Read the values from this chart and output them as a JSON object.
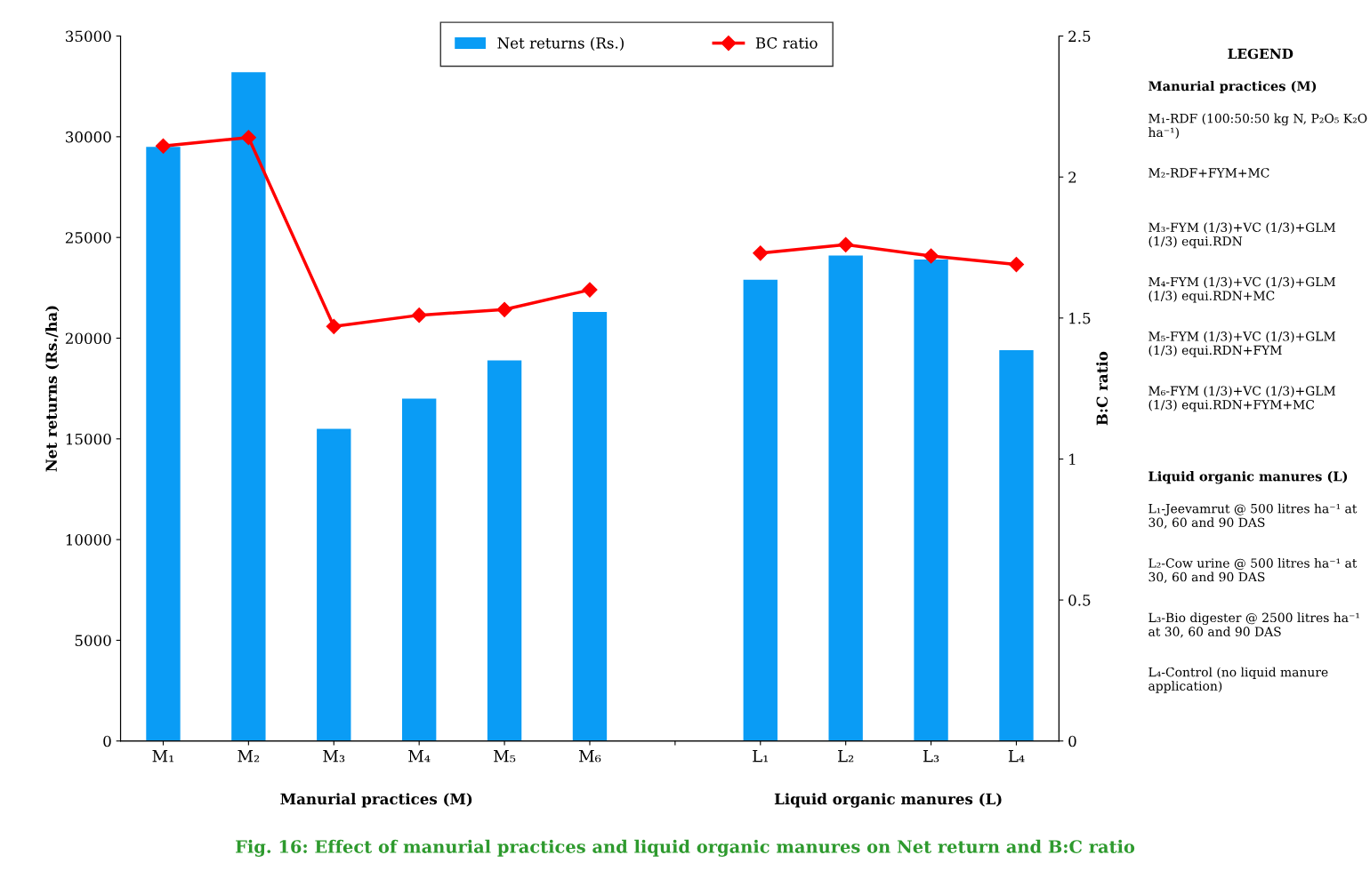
{
  "chart_data": {
    "type": "bar",
    "title": "Fig. 16: Effect of manurial practices and liquid organic manures on Net return and B:C ratio",
    "ylabel": "Net returns (Rs./ha)",
    "y2label": "B:C ratio",
    "categories": [
      "M₁",
      "M₂",
      "M₃",
      "M₄",
      "M₅",
      "M₆",
      null,
      "L₁",
      "L₂",
      "L₃",
      "L₄"
    ],
    "series": [
      {
        "name": "Net returns (Rs.)",
        "color": "#0a9cf5",
        "values": [
          29500,
          33200,
          15500,
          17000,
          18900,
          21300,
          null,
          22900,
          24100,
          23900,
          19400
        ]
      },
      {
        "name": "BC ratio",
        "type": "line",
        "axis": "y2",
        "color": "#ff0000",
        "marker": "diamond",
        "values": [
          2.11,
          2.14,
          1.47,
          1.51,
          1.53,
          1.6,
          null,
          1.73,
          1.76,
          1.72,
          1.69
        ]
      }
    ],
    "ylim": [
      0,
      35000
    ],
    "yticks": [
      0,
      5000,
      10000,
      15000,
      20000,
      25000,
      30000,
      35000
    ],
    "y2lim": [
      0,
      2.5
    ],
    "y2ticks": [
      0,
      0.5,
      1,
      1.5,
      2,
      2.5
    ],
    "legend": "top",
    "grid": false,
    "annotations": [
      "Manurial practices (M)",
      "Liquid organic manures (L)",
      "LEGEND",
      "Manurial practices (M)",
      "M₁-RDF (100:50:50 kg N, P₂O₅ K₂O ha⁻¹)",
      "M₂-RDF+FYM+MC",
      "M₃-FYM (1/3)+VC (1/3)+GLM (1/3) equi.RDN",
      "M₄-FYM (1/3)+VC (1/3)+GLM (1/3) equi.RDN+MC",
      "M₅-FYM (1/3)+VC (1/3)+GLM (1/3) equi.RDN+FYM",
      "M₆-FYM (1/3)+VC (1/3)+GLM (1/3) equi.RDN+FYM+MC",
      "Liquid organic manures (L)",
      "L₁-Jeevamrut @ 500 litres ha⁻¹ at 30, 60 and 90 DAS",
      "L₂-Cow urine @ 500 litres ha⁻¹ at 30, 60 and 90 DAS",
      "L₃-Bio digester @ 2500 litres ha⁻¹ at 30, 60 and 90 DAS",
      "L₄-Control (no liquid manure application)"
    ]
  }
}
